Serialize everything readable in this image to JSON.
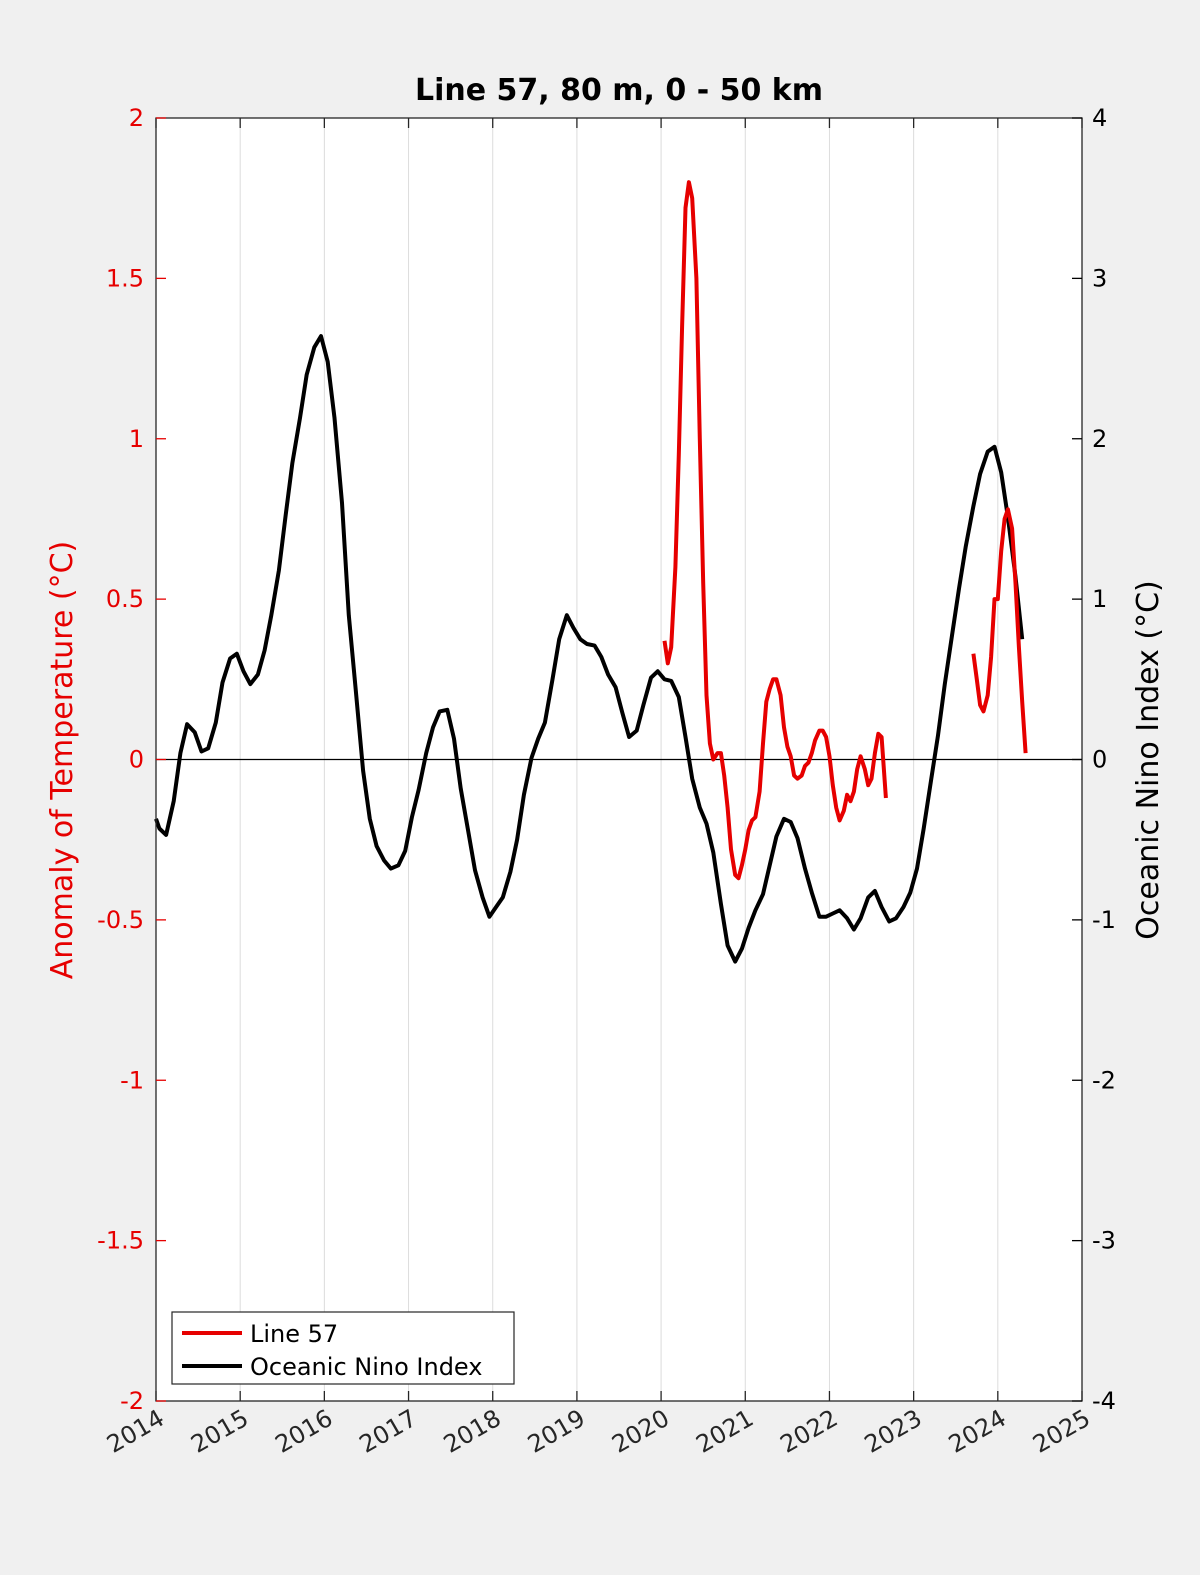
{
  "chart_data": {
    "type": "line",
    "title": "Line 57, 80 m, 0 - 50 km",
    "xlim": [
      2014,
      2025
    ],
    "x_ticks": [
      "2014",
      "2015",
      "2016",
      "2017",
      "2018",
      "2019",
      "2020",
      "2021",
      "2022",
      "2023",
      "2024",
      "2025"
    ],
    "y_left": {
      "label": "Anomaly of Temperature (°C)",
      "lim": [
        -2,
        2
      ],
      "ticks": [
        "2",
        "1.5",
        "1",
        "0.5",
        "0",
        "-0.5",
        "-1",
        "-1.5",
        "-2"
      ],
      "color": "#e60000"
    },
    "y_right": {
      "label": "Oceanic Nino Index (°C)",
      "lim": [
        -4,
        4
      ],
      "ticks": [
        "4",
        "3",
        "2",
        "1",
        "0",
        "-1",
        "-2",
        "-3",
        "-4"
      ],
      "color": "#000000"
    },
    "grid": "vertical",
    "zero_line": true,
    "legend_position": "bottom-left",
    "series": [
      {
        "name": "Line 57",
        "axis": "left",
        "color": "#e60000",
        "segments": [
          [
            [
              2020.04,
              0.37
            ],
            [
              2020.08,
              0.3
            ],
            [
              2020.12,
              0.35
            ],
            [
              2020.17,
              0.6
            ],
            [
              2020.21,
              0.95
            ],
            [
              2020.25,
              1.35
            ],
            [
              2020.29,
              1.72
            ],
            [
              2020.33,
              1.8
            ],
            [
              2020.37,
              1.75
            ],
            [
              2020.42,
              1.5
            ],
            [
              2020.46,
              1.0
            ],
            [
              2020.5,
              0.55
            ],
            [
              2020.54,
              0.2
            ],
            [
              2020.58,
              0.05
            ],
            [
              2020.62,
              0.0
            ],
            [
              2020.67,
              0.02
            ],
            [
              2020.71,
              0.02
            ],
            [
              2020.75,
              -0.05
            ],
            [
              2020.79,
              -0.15
            ],
            [
              2020.83,
              -0.28
            ],
            [
              2020.88,
              -0.36
            ],
            [
              2020.92,
              -0.37
            ],
            [
              2020.96,
              -0.33
            ],
            [
              2021.0,
              -0.28
            ],
            [
              2021.04,
              -0.22
            ],
            [
              2021.08,
              -0.19
            ],
            [
              2021.12,
              -0.18
            ],
            [
              2021.17,
              -0.1
            ],
            [
              2021.21,
              0.05
            ],
            [
              2021.25,
              0.18
            ],
            [
              2021.29,
              0.22
            ],
            [
              2021.33,
              0.25
            ],
            [
              2021.37,
              0.25
            ],
            [
              2021.42,
              0.2
            ],
            [
              2021.46,
              0.1
            ],
            [
              2021.5,
              0.04
            ],
            [
              2021.54,
              0.01
            ],
            [
              2021.58,
              -0.05
            ],
            [
              2021.62,
              -0.06
            ],
            [
              2021.67,
              -0.05
            ],
            [
              2021.71,
              -0.02
            ],
            [
              2021.75,
              -0.01
            ],
            [
              2021.79,
              0.02
            ],
            [
              2021.83,
              0.06
            ],
            [
              2021.88,
              0.09
            ],
            [
              2021.92,
              0.09
            ],
            [
              2021.96,
              0.07
            ],
            [
              2022.0,
              0.01
            ],
            [
              2022.04,
              -0.08
            ],
            [
              2022.08,
              -0.15
            ],
            [
              2022.12,
              -0.19
            ],
            [
              2022.17,
              -0.16
            ],
            [
              2022.21,
              -0.11
            ],
            [
              2022.25,
              -0.13
            ],
            [
              2022.29,
              -0.1
            ],
            [
              2022.33,
              -0.03
            ],
            [
              2022.37,
              0.01
            ],
            [
              2022.42,
              -0.03
            ],
            [
              2022.46,
              -0.08
            ],
            [
              2022.5,
              -0.06
            ],
            [
              2022.54,
              0.02
            ],
            [
              2022.58,
              0.08
            ],
            [
              2022.62,
              0.07
            ],
            [
              2022.67,
              -0.12
            ]
          ],
          [
            [
              2023.71,
              0.33
            ],
            [
              2023.75,
              0.25
            ],
            [
              2023.79,
              0.17
            ],
            [
              2023.83,
              0.15
            ],
            [
              2023.88,
              0.2
            ],
            [
              2023.92,
              0.32
            ],
            [
              2023.96,
              0.5
            ],
            [
              2024.0,
              0.5
            ],
            [
              2024.04,
              0.65
            ],
            [
              2024.08,
              0.75
            ],
            [
              2024.12,
              0.78
            ],
            [
              2024.17,
              0.72
            ],
            [
              2024.21,
              0.55
            ],
            [
              2024.25,
              0.35
            ],
            [
              2024.29,
              0.18
            ],
            [
              2024.33,
              0.02
            ]
          ]
        ]
      },
      {
        "name": "Oceanic Nino Index",
        "axis": "right",
        "color": "#000000",
        "segments": [
          [
            [
              2014.0,
              -0.37
            ],
            [
              2014.04,
              -0.43
            ],
            [
              2014.12,
              -0.47
            ],
            [
              2014.21,
              -0.26
            ],
            [
              2014.29,
              0.04
            ],
            [
              2014.37,
              0.22
            ],
            [
              2014.46,
              0.17
            ],
            [
              2014.54,
              0.05
            ],
            [
              2014.62,
              0.07
            ],
            [
              2014.71,
              0.23
            ],
            [
              2014.79,
              0.48
            ],
            [
              2014.88,
              0.63
            ],
            [
              2014.96,
              0.66
            ],
            [
              2015.04,
              0.55
            ],
            [
              2015.12,
              0.47
            ],
            [
              2015.21,
              0.53
            ],
            [
              2015.29,
              0.68
            ],
            [
              2015.37,
              0.9
            ],
            [
              2015.46,
              1.18
            ],
            [
              2015.54,
              1.52
            ],
            [
              2015.62,
              1.85
            ],
            [
              2015.71,
              2.13
            ],
            [
              2015.79,
              2.4
            ],
            [
              2015.88,
              2.57
            ],
            [
              2015.96,
              2.64
            ],
            [
              2016.04,
              2.48
            ],
            [
              2016.12,
              2.13
            ],
            [
              2016.21,
              1.6
            ],
            [
              2016.29,
              0.9
            ],
            [
              2016.37,
              0.45
            ],
            [
              2016.46,
              -0.07
            ],
            [
              2016.54,
              -0.37
            ],
            [
              2016.62,
              -0.54
            ],
            [
              2016.71,
              -0.63
            ],
            [
              2016.79,
              -0.68
            ],
            [
              2016.88,
              -0.66
            ],
            [
              2016.96,
              -0.57
            ],
            [
              2017.04,
              -0.36
            ],
            [
              2017.12,
              -0.19
            ],
            [
              2017.21,
              0.04
            ],
            [
              2017.29,
              0.2
            ],
            [
              2017.37,
              0.3
            ],
            [
              2017.46,
              0.31
            ],
            [
              2017.54,
              0.13
            ],
            [
              2017.62,
              -0.18
            ],
            [
              2017.71,
              -0.45
            ],
            [
              2017.79,
              -0.69
            ],
            [
              2017.88,
              -0.86
            ],
            [
              2017.96,
              -0.98
            ],
            [
              2018.04,
              -0.92
            ],
            [
              2018.12,
              -0.86
            ],
            [
              2018.21,
              -0.7
            ],
            [
              2018.29,
              -0.5
            ],
            [
              2018.37,
              -0.22
            ],
            [
              2018.46,
              0.01
            ],
            [
              2018.54,
              0.13
            ],
            [
              2018.62,
              0.23
            ],
            [
              2018.71,
              0.5
            ],
            [
              2018.79,
              0.75
            ],
            [
              2018.88,
              0.9
            ],
            [
              2018.96,
              0.82
            ],
            [
              2019.04,
              0.75
            ],
            [
              2019.12,
              0.72
            ],
            [
              2019.21,
              0.71
            ],
            [
              2019.29,
              0.64
            ],
            [
              2019.37,
              0.53
            ],
            [
              2019.46,
              0.45
            ],
            [
              2019.54,
              0.29
            ],
            [
              2019.62,
              0.14
            ],
            [
              2019.71,
              0.18
            ],
            [
              2019.79,
              0.34
            ],
            [
              2019.88,
              0.51
            ],
            [
              2019.96,
              0.55
            ],
            [
              2020.04,
              0.5
            ],
            [
              2020.12,
              0.49
            ],
            [
              2020.21,
              0.39
            ],
            [
              2020.29,
              0.14
            ],
            [
              2020.37,
              -0.12
            ],
            [
              2020.46,
              -0.3
            ],
            [
              2020.54,
              -0.4
            ],
            [
              2020.62,
              -0.58
            ],
            [
              2020.71,
              -0.9
            ],
            [
              2020.79,
              -1.16
            ],
            [
              2020.88,
              -1.26
            ],
            [
              2020.96,
              -1.18
            ],
            [
              2021.04,
              -1.05
            ],
            [
              2021.12,
              -0.94
            ],
            [
              2021.21,
              -0.84
            ],
            [
              2021.29,
              -0.66
            ],
            [
              2021.37,
              -0.48
            ],
            [
              2021.46,
              -0.37
            ],
            [
              2021.54,
              -0.39
            ],
            [
              2021.62,
              -0.49
            ],
            [
              2021.71,
              -0.68
            ],
            [
              2021.79,
              -0.83
            ],
            [
              2021.88,
              -0.98
            ],
            [
              2021.96,
              -0.98
            ],
            [
              2022.04,
              -0.96
            ],
            [
              2022.12,
              -0.94
            ],
            [
              2022.21,
              -0.99
            ],
            [
              2022.29,
              -1.06
            ],
            [
              2022.37,
              -0.99
            ],
            [
              2022.46,
              -0.86
            ],
            [
              2022.54,
              -0.82
            ],
            [
              2022.62,
              -0.92
            ],
            [
              2022.71,
              -1.01
            ],
            [
              2022.79,
              -0.99
            ],
            [
              2022.88,
              -0.92
            ],
            [
              2022.96,
              -0.83
            ],
            [
              2023.04,
              -0.68
            ],
            [
              2023.12,
              -0.43
            ],
            [
              2023.21,
              -0.12
            ],
            [
              2023.29,
              0.15
            ],
            [
              2023.37,
              0.47
            ],
            [
              2023.46,
              0.79
            ],
            [
              2023.54,
              1.07
            ],
            [
              2023.62,
              1.33
            ],
            [
              2023.71,
              1.58
            ],
            [
              2023.79,
              1.78
            ],
            [
              2023.88,
              1.92
            ],
            [
              2023.96,
              1.95
            ],
            [
              2024.04,
              1.79
            ],
            [
              2024.12,
              1.51
            ],
            [
              2024.21,
              1.14
            ],
            [
              2024.29,
              0.75
            ]
          ]
        ]
      }
    ]
  }
}
